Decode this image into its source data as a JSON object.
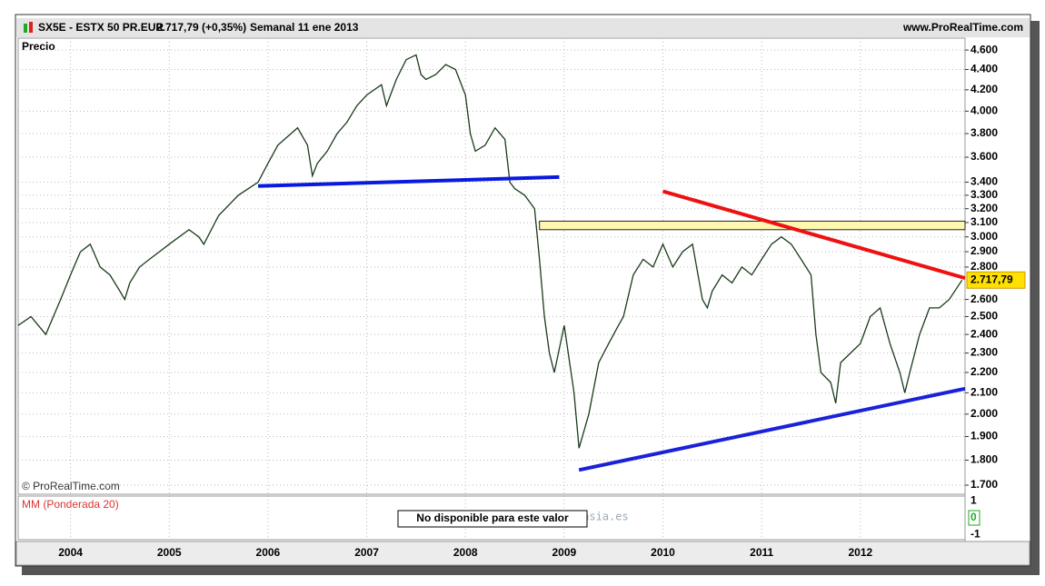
{
  "header": {
    "symbol": "SX5E - ESTX 50 PR.EUR",
    "quote": "2.717,79 (+0,35%)",
    "period": "Semanal  11 ene 2013",
    "site": "www.ProRealTime.com"
  },
  "chart_data": {
    "type": "line",
    "title": "Precio",
    "copyright": "© ProRealTime.com",
    "watermark": "labolsaantonomasia.es",
    "log_scale": true,
    "grid": true,
    "x": [
      2003.47,
      2003.6,
      2003.75,
      2003.9,
      2004.0,
      2004.1,
      2004.2,
      2004.3,
      2004.4,
      2004.5,
      2004.55,
      2004.6,
      2004.7,
      2004.8,
      2004.9,
      2005.0,
      2005.2,
      2005.3,
      2005.35,
      2005.5,
      2005.7,
      2005.8,
      2005.9,
      2006.0,
      2006.1,
      2006.3,
      2006.4,
      2006.45,
      2006.5,
      2006.6,
      2006.7,
      2006.8,
      2006.9,
      2007.0,
      2007.15,
      2007.2,
      2007.3,
      2007.4,
      2007.5,
      2007.55,
      2007.6,
      2007.7,
      2007.8,
      2007.9,
      2008.0,
      2008.05,
      2008.1,
      2008.2,
      2008.3,
      2008.4,
      2008.45,
      2008.5,
      2008.6,
      2008.7,
      2008.75,
      2008.8,
      2008.85,
      2008.9,
      2009.0,
      2009.1,
      2009.15,
      2009.25,
      2009.35,
      2009.45,
      2009.55,
      2009.6,
      2009.7,
      2009.8,
      2009.9,
      2010.0,
      2010.1,
      2010.2,
      2010.3,
      2010.4,
      2010.45,
      2010.5,
      2010.6,
      2010.7,
      2010.8,
      2010.9,
      2011.0,
      2011.1,
      2011.2,
      2011.3,
      2011.4,
      2011.5,
      2011.55,
      2011.6,
      2011.7,
      2011.75,
      2011.8,
      2011.9,
      2012.0,
      2012.1,
      2012.2,
      2012.3,
      2012.4,
      2012.45,
      2012.5,
      2012.6,
      2012.7,
      2012.8,
      2012.9,
      2013.03
    ],
    "series": [
      {
        "color": "#1a3a1a",
        "values": [
          2450,
          2500,
          2400,
          2600,
          2750,
          2900,
          2950,
          2800,
          2750,
          2650,
          2600,
          2700,
          2800,
          2850,
          2900,
          2950,
          3050,
          3000,
          2950,
          3150,
          3300,
          3350,
          3400,
          3550,
          3700,
          3850,
          3700,
          3450,
          3550,
          3650,
          3800,
          3900,
          4050,
          4150,
          4250,
          4050,
          4300,
          4500,
          4550,
          4350,
          4300,
          4350,
          4450,
          4400,
          4150,
          3800,
          3650,
          3700,
          3850,
          3750,
          3400,
          3350,
          3300,
          3200,
          2850,
          2500,
          2300,
          2200,
          2450,
          2100,
          1850,
          2000,
          2250,
          2350,
          2450,
          2500,
          2750,
          2850,
          2800,
          2950,
          2800,
          2900,
          2950,
          2600,
          2550,
          2650,
          2750,
          2700,
          2800,
          2750,
          2850,
          2950,
          3000,
          2950,
          2850,
          2750,
          2400,
          2200,
          2150,
          2050,
          2250,
          2300,
          2350,
          2500,
          2550,
          2350,
          2200,
          2100,
          2200,
          2400,
          2550,
          2550,
          2600,
          2717.79
        ]
      }
    ],
    "lines": [
      {
        "color": "#0a1adc",
        "x": [
          2005.9,
          2008.95
        ],
        "y": [
          3370,
          3440
        ]
      },
      {
        "color": "#ee1111",
        "x": [
          2010.0,
          2013.06
        ],
        "y": [
          3330,
          2730
        ]
      },
      {
        "color": "#1a22d8",
        "x": [
          2009.15,
          2013.06
        ],
        "y": [
          1760,
          2120
        ]
      }
    ],
    "zone": {
      "color": "#fff6b0",
      "x": [
        2008.75,
        2013.06
      ],
      "y": [
        3050,
        3110
      ]
    },
    "last_value": {
      "value": 2717.79,
      "label": "2.717,79"
    },
    "xlim": [
      2003.47,
      2013.06
    ],
    "xticks": [
      2004,
      2005,
      2006,
      2007,
      2008,
      2009,
      2010,
      2011,
      2012
    ],
    "ylim": [
      1665,
      4727
    ],
    "yticks": [
      {
        "value": 1700,
        "label": "1.700"
      },
      {
        "value": 1800,
        "label": "1.800"
      },
      {
        "value": 1900,
        "label": "1.900"
      },
      {
        "value": 2000,
        "label": "2.000"
      },
      {
        "value": 2100,
        "label": "2.100"
      },
      {
        "value": 2200,
        "label": "2.200"
      },
      {
        "value": 2300,
        "label": "2.300"
      },
      {
        "value": 2400,
        "label": "2.400"
      },
      {
        "value": 2500,
        "label": "2.500"
      },
      {
        "value": 2600,
        "label": "2.600"
      },
      {
        "value": 2800,
        "label": "2.800"
      },
      {
        "value": 2900,
        "label": "2.900"
      },
      {
        "value": 3000,
        "label": "3.000"
      },
      {
        "value": 3100,
        "label": "3.100"
      },
      {
        "value": 3200,
        "label": "3.200"
      },
      {
        "value": 3300,
        "label": "3.300"
      },
      {
        "value": 3400,
        "label": "3.400"
      },
      {
        "value": 3600,
        "label": "3.600"
      },
      {
        "value": 3800,
        "label": "3.800"
      },
      {
        "value": 4000,
        "label": "4.000"
      },
      {
        "value": 4200,
        "label": "4.200"
      },
      {
        "value": 4400,
        "label": "4.400"
      },
      {
        "value": 4600,
        "label": "4.600"
      }
    ],
    "indicator": {
      "title": "MM (Ponderada 20)",
      "message": "No disponible para este valor",
      "ylim": [
        -1.3,
        1.3
      ],
      "yticks": [
        1,
        0,
        -1
      ]
    }
  }
}
